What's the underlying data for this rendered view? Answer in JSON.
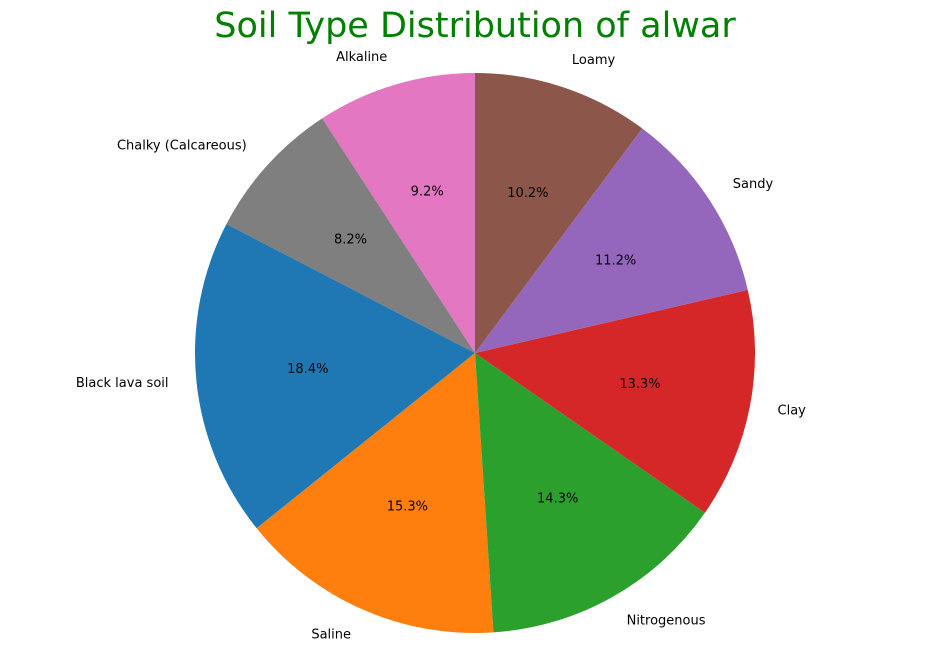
{
  "chart_data": {
    "type": "pie",
    "title": "Soil Type Distribution of alwar",
    "title_color": "#008000",
    "start_angle_deg": 90,
    "direction": "counterclockwise",
    "slices": [
      {
        "label": "Alkaline",
        "pct_label": "9.2%",
        "value": 9.2,
        "color": "#e377c2"
      },
      {
        "label": "Chalky (Calcareous)",
        "pct_label": "8.2%",
        "value": 8.2,
        "color": "#7f7f7f"
      },
      {
        "label": "Black lava soil",
        "pct_label": "18.4%",
        "value": 18.4,
        "color": "#1f77b4"
      },
      {
        "label": "Saline",
        "pct_label": "15.3%",
        "value": 15.3,
        "color": "#ff7f0e"
      },
      {
        "label": "Nitrogenous",
        "pct_label": "14.3%",
        "value": 14.3,
        "color": "#2ca02c"
      },
      {
        "label": "Clay",
        "pct_label": "13.3%",
        "value": 13.3,
        "color": "#d62728"
      },
      {
        "label": "Sandy",
        "pct_label": "11.2%",
        "value": 11.2,
        "color": "#9467bd"
      },
      {
        "label": "Loamy",
        "pct_label": "10.2%",
        "value": 10.2,
        "color": "#8c564b"
      }
    ]
  }
}
